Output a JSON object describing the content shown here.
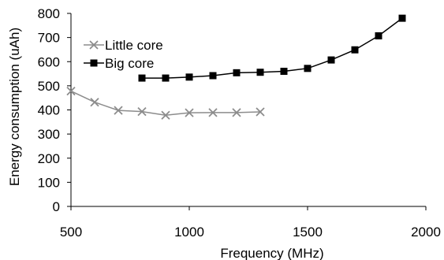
{
  "chart_data": {
    "type": "line",
    "xlabel": "Frequency (MHz)",
    "ylabel": "Energy consumption (uAh)",
    "xlim": [
      500,
      2000
    ],
    "ylim": [
      0,
      800
    ],
    "xticks": [
      500,
      1000,
      1500,
      2000
    ],
    "yticks": [
      0,
      100,
      200,
      300,
      400,
      500,
      600,
      700,
      800
    ],
    "grid": false,
    "legend_position": "top-left",
    "series": [
      {
        "name": "Little core",
        "marker": "x",
        "color": "#8c8c8c",
        "x": [
          500,
          600,
          700,
          800,
          900,
          1000,
          1100,
          1200,
          1300
        ],
        "y": [
          478,
          432,
          398,
          393,
          378,
          388,
          389,
          389,
          392
        ]
      },
      {
        "name": "Big core",
        "marker": "square",
        "color": "#000000",
        "x": [
          800,
          900,
          1000,
          1100,
          1200,
          1300,
          1400,
          1500,
          1600,
          1700,
          1800,
          1900
        ],
        "y": [
          532,
          532,
          536,
          542,
          554,
          556,
          560,
          572,
          607,
          649,
          707,
          780
        ]
      }
    ]
  }
}
